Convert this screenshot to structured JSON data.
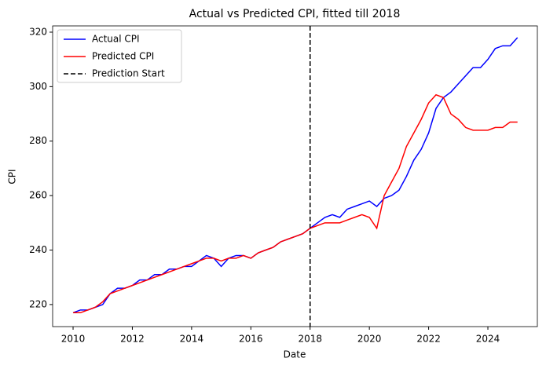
{
  "chart_data": {
    "type": "line",
    "title": "Actual vs Predicted CPI, fitted till 2018",
    "x_label": "Date",
    "y_label": "CPI",
    "x": [
      2010.0,
      2010.25,
      2010.5,
      2010.75,
      2011.0,
      2011.25,
      2011.5,
      2011.75,
      2012.0,
      2012.25,
      2012.5,
      2012.75,
      2013.0,
      2013.25,
      2013.5,
      2013.75,
      2014.0,
      2014.25,
      2014.5,
      2014.75,
      2015.0,
      2015.25,
      2015.5,
      2015.75,
      2016.0,
      2016.25,
      2016.5,
      2016.75,
      2017.0,
      2017.25,
      2017.5,
      2017.75,
      2018.0,
      2018.25,
      2018.5,
      2018.75,
      2019.0,
      2019.25,
      2019.5,
      2019.75,
      2020.0,
      2020.25,
      2020.5,
      2020.75,
      2021.0,
      2021.25,
      2021.5,
      2021.75,
      2022.0,
      2022.25,
      2022.5,
      2022.75,
      2023.0,
      2023.25,
      2023.5,
      2023.75,
      2024.0,
      2024.25,
      2024.5,
      2024.75,
      2025.0
    ],
    "series": [
      {
        "name": "Actual CPI",
        "color": "#0000ff",
        "values": [
          217,
          218,
          218,
          219,
          220,
          224,
          226,
          226,
          227,
          229,
          229,
          231,
          231,
          233,
          233,
          234,
          234,
          236,
          238,
          237,
          234,
          237,
          238,
          238,
          237,
          239,
          240,
          241,
          243,
          244,
          245,
          246,
          248,
          250,
          252,
          253,
          252,
          255,
          256,
          257,
          258,
          256,
          259,
          260,
          262,
          267,
          273,
          277,
          283,
          292,
          296,
          298,
          301,
          304,
          307,
          307,
          310,
          314,
          315,
          315,
          318
        ]
      },
      {
        "name": "Predicted CPI",
        "color": "#ff0000",
        "values": [
          217,
          217,
          218,
          219,
          221,
          224,
          225,
          226,
          227,
          228,
          229,
          230,
          231,
          232,
          233,
          234,
          235,
          236,
          237,
          237,
          236,
          237,
          237,
          238,
          237,
          239,
          240,
          241,
          243,
          244,
          245,
          246,
          248,
          249,
          250,
          250,
          250,
          251,
          252,
          253,
          252,
          248,
          260,
          265,
          270,
          278,
          283,
          288,
          294,
          297,
          296,
          290,
          288,
          285,
          284,
          284,
          284,
          285,
          285,
          287,
          287
        ]
      }
    ],
    "vline": {
      "name": "Prediction Start",
      "color": "#000000",
      "x": 2018
    },
    "xlim": [
      2009.31,
      2025.67
    ],
    "ylim": [
      211.9,
      322.3
    ],
    "xticks": [
      2010,
      2012,
      2014,
      2016,
      2018,
      2020,
      2022,
      2024
    ],
    "yticks": [
      220,
      240,
      260,
      280,
      300,
      320
    ],
    "legend": "upper-left"
  }
}
